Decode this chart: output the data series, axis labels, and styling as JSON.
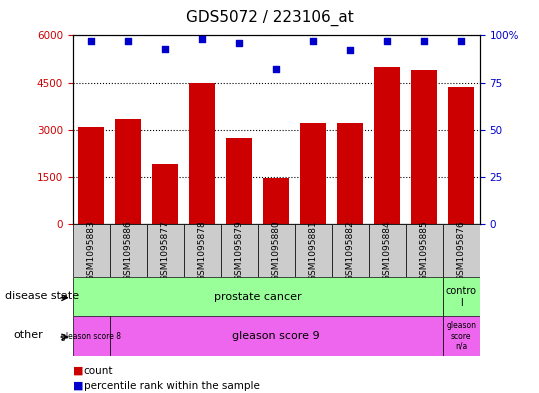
{
  "title": "GDS5072 / 223106_at",
  "samples": [
    "GSM1095883",
    "GSM1095886",
    "GSM1095877",
    "GSM1095878",
    "GSM1095879",
    "GSM1095880",
    "GSM1095881",
    "GSM1095882",
    "GSM1095884",
    "GSM1095885",
    "GSM1095876"
  ],
  "bar_values": [
    3100,
    3350,
    1900,
    4500,
    2750,
    1450,
    3200,
    3200,
    5000,
    4900,
    4350
  ],
  "percentile_values": [
    97,
    97,
    93,
    98,
    96,
    82,
    97,
    92,
    97,
    97,
    97
  ],
  "bar_color": "#cc0000",
  "dot_color": "#0000cc",
  "ylim_left": [
    0,
    6000
  ],
  "ylim_right": [
    0,
    100
  ],
  "yticks_left": [
    0,
    1500,
    3000,
    4500,
    6000
  ],
  "yticks_right": [
    0,
    25,
    50,
    75,
    100
  ],
  "disease_state_color": "#99ff99",
  "other_color": "#ee66ee",
  "background_color": "#ffffff",
  "tick_area_color": "#cccccc",
  "title_fontsize": 11
}
